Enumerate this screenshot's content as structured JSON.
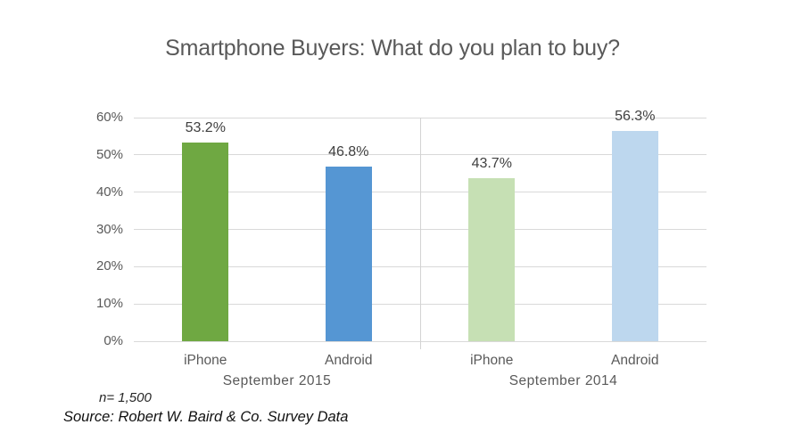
{
  "title": "Smartphone Buyers: What do you plan to buy?",
  "chart_data": {
    "type": "bar",
    "categories": [
      "September 2015",
      "September 2014"
    ],
    "series": [
      {
        "name": "iPhone",
        "values": [
          53.2,
          43.7
        ],
        "labels": [
          "53.2%",
          "43.7%"
        ],
        "colors": [
          "#6FA842",
          "#C6E0B4"
        ]
      },
      {
        "name": "Android",
        "values": [
          46.8,
          56.3
        ],
        "labels": [
          "46.8%",
          "56.3%"
        ],
        "colors": [
          "#5596D3",
          "#BDD7EE"
        ]
      }
    ],
    "xlabel": "",
    "ylabel": "",
    "ylim": [
      0,
      60
    ],
    "ytick_labels": [
      "0%",
      "10%",
      "20%",
      "30%",
      "40%",
      "50%",
      "60%"
    ],
    "grid": true,
    "legend": "none",
    "group_separator": true
  },
  "footnote": {
    "sample_size": "n= 1,500",
    "source": "Source: Robert W. Baird & Co. Survey Data"
  },
  "colors": {
    "title_text": "#595959",
    "axis_text": "#595959",
    "value_label_text": "#404040",
    "gridline": "#D9D9D9",
    "separator": "#D3D3D3",
    "background": "#FFFFFF"
  }
}
